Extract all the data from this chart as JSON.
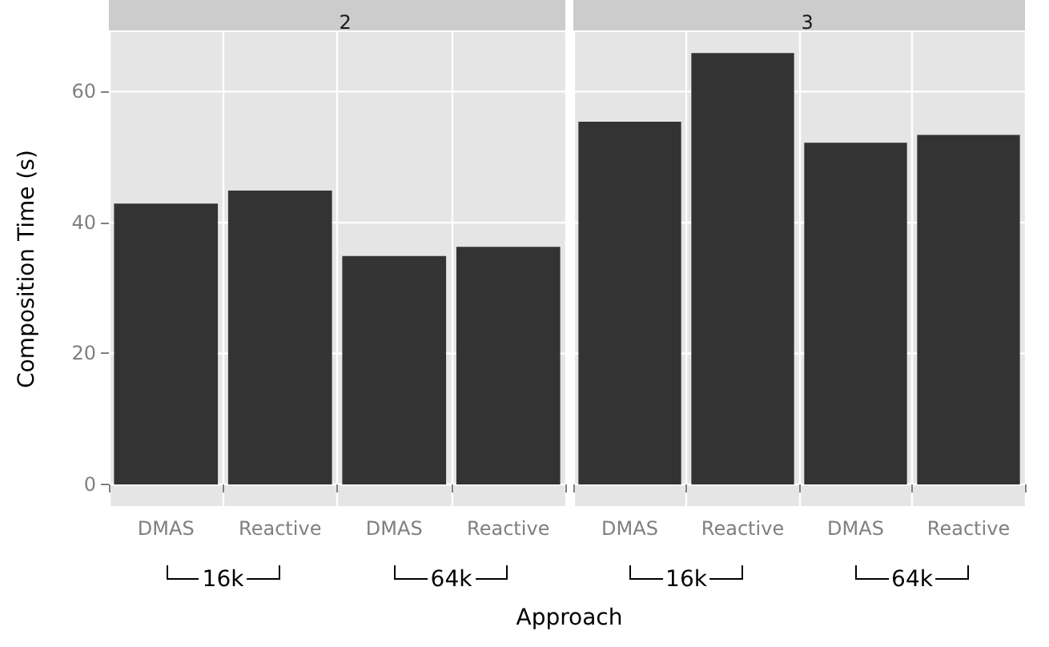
{
  "chart_data": [
    {
      "type": "bar",
      "title": "2",
      "categories": [
        "DMAS",
        "Reactive",
        "DMAS",
        "Reactive"
      ],
      "values": [
        42.9,
        44.9,
        34.9,
        36.3
      ],
      "color": "#333333",
      "ylim": [
        -3.3,
        69.1
      ],
      "yticks": [
        0,
        20,
        40,
        60
      ],
      "grid": true,
      "ylabel": "Composition Time (s)",
      "xlabel": "Approach",
      "annotations": [
        "16k",
        "64k"
      ]
    },
    {
      "type": "bar",
      "title": "3",
      "categories": [
        "DMAS",
        "Reactive",
        "DMAS",
        "Reactive"
      ],
      "values": [
        55.4,
        65.9,
        52.2,
        53.4
      ],
      "color": "#333333",
      "ylim": [
        -3.3,
        69.1
      ],
      "yticks": [
        0,
        20,
        40,
        60
      ],
      "grid": true,
      "tick_labels": "x",
      "annotations": [
        "16k",
        "64k"
      ]
    }
  ]
}
